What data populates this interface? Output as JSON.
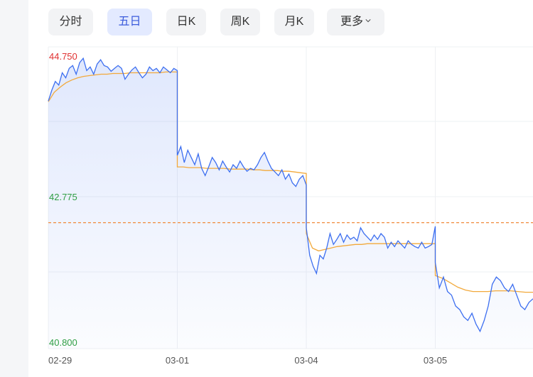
{
  "tabs": [
    {
      "label": "分时",
      "active": false
    },
    {
      "label": "五日",
      "active": true
    },
    {
      "label": "日K",
      "active": false
    },
    {
      "label": "周K",
      "active": false
    },
    {
      "label": "月K",
      "active": false
    },
    {
      "label": "更多",
      "active": false,
      "dropdown": true
    }
  ],
  "colors": {
    "price": "#3d6ff0",
    "average": "#f2a93b",
    "ref_line": "#f08a3c",
    "high_label": "#e03131",
    "low_label": "#2f9e44",
    "mid_label": "#2f9e44",
    "active_tab_bg": "#e3eaff",
    "active_tab_text": "#3b5bdb"
  },
  "chart_data": {
    "type": "line",
    "y_labels": {
      "top": "44.750",
      "mid": "42.775",
      "bottom": "40.800"
    },
    "ylim": [
      40.8,
      44.75
    ],
    "reference_price": 42.45,
    "days": [
      "02-29",
      "03-01",
      "03-04",
      "03-05",
      ""
    ],
    "series": [
      {
        "key": "price",
        "days": [
          [
            44.13,
            44.28,
            44.4,
            44.35,
            44.52,
            44.45,
            44.58,
            44.62,
            44.5,
            44.66,
            44.72,
            44.55,
            44.6,
            44.5,
            44.64,
            44.7,
            44.62,
            44.6,
            44.54,
            44.58,
            44.62,
            44.58,
            44.43,
            44.5,
            44.56,
            44.6,
            44.52,
            44.45,
            44.5,
            44.6,
            44.55,
            44.58,
            44.52,
            44.6,
            44.56,
            44.52,
            44.58,
            44.55
          ],
          [
            43.38,
            43.5,
            43.28,
            43.45,
            43.35,
            43.25,
            43.4,
            43.2,
            43.1,
            43.22,
            43.35,
            43.28,
            43.18,
            43.3,
            43.22,
            43.15,
            43.25,
            43.2,
            43.3,
            43.22,
            43.16,
            43.2,
            43.18,
            43.25,
            43.35,
            43.42,
            43.3,
            43.2,
            43.15,
            43.1,
            43.18,
            43.05,
            43.12,
            43.0,
            42.95,
            43.05,
            43.1,
            42.97
          ],
          [
            42.38,
            42.0,
            41.85,
            41.75,
            42.0,
            41.95,
            42.1,
            42.3,
            42.15,
            42.22,
            42.3,
            42.18,
            42.28,
            42.22,
            42.25,
            42.2,
            42.38,
            42.3,
            42.25,
            42.2,
            42.28,
            42.22,
            42.3,
            42.25,
            42.1,
            42.18,
            42.12,
            42.2,
            42.15,
            42.1,
            42.2,
            42.15,
            42.12,
            42.1,
            42.18,
            42.1,
            42.12,
            42.15,
            42.4
          ],
          [
            41.9,
            41.55,
            41.7,
            41.5,
            41.45,
            41.3,
            41.25,
            41.15,
            41.1,
            41.2,
            41.05,
            40.95,
            41.1,
            41.3,
            41.6,
            41.7,
            41.65,
            41.55,
            41.5,
            41.6,
            41.45,
            41.3,
            41.25,
            41.35,
            41.4
          ]
        ]
      },
      {
        "key": "average",
        "days": [
          [
            44.12,
            44.25,
            44.32,
            44.38,
            44.42,
            44.45,
            44.47,
            44.48,
            44.49,
            44.5,
            44.5,
            44.51,
            44.51,
            44.51,
            44.52,
            44.52,
            44.52,
            44.52,
            44.52,
            44.52,
            44.53,
            44.53,
            44.53
          ],
          [
            43.22,
            43.22,
            43.21,
            43.21,
            43.21,
            43.2,
            43.2,
            43.2,
            43.2,
            43.19,
            43.19,
            43.19,
            43.19,
            43.18,
            43.18,
            43.17,
            43.17,
            43.17,
            43.16,
            43.16,
            43.15,
            43.14,
            43.13
          ],
          [
            42.3,
            42.1,
            42.06,
            42.08,
            42.1,
            42.12,
            42.13,
            42.14,
            42.15,
            42.15,
            42.16,
            42.16,
            42.16,
            42.16,
            42.16,
            42.16,
            42.16,
            42.16,
            42.16,
            42.16,
            42.16,
            42.16
          ],
          [
            41.72,
            41.68,
            41.62,
            41.56,
            41.52,
            41.5,
            41.5,
            41.5,
            41.51,
            41.51,
            41.51,
            41.5,
            41.49,
            41.49
          ]
        ]
      }
    ],
    "grid": true,
    "area_fill": true
  }
}
